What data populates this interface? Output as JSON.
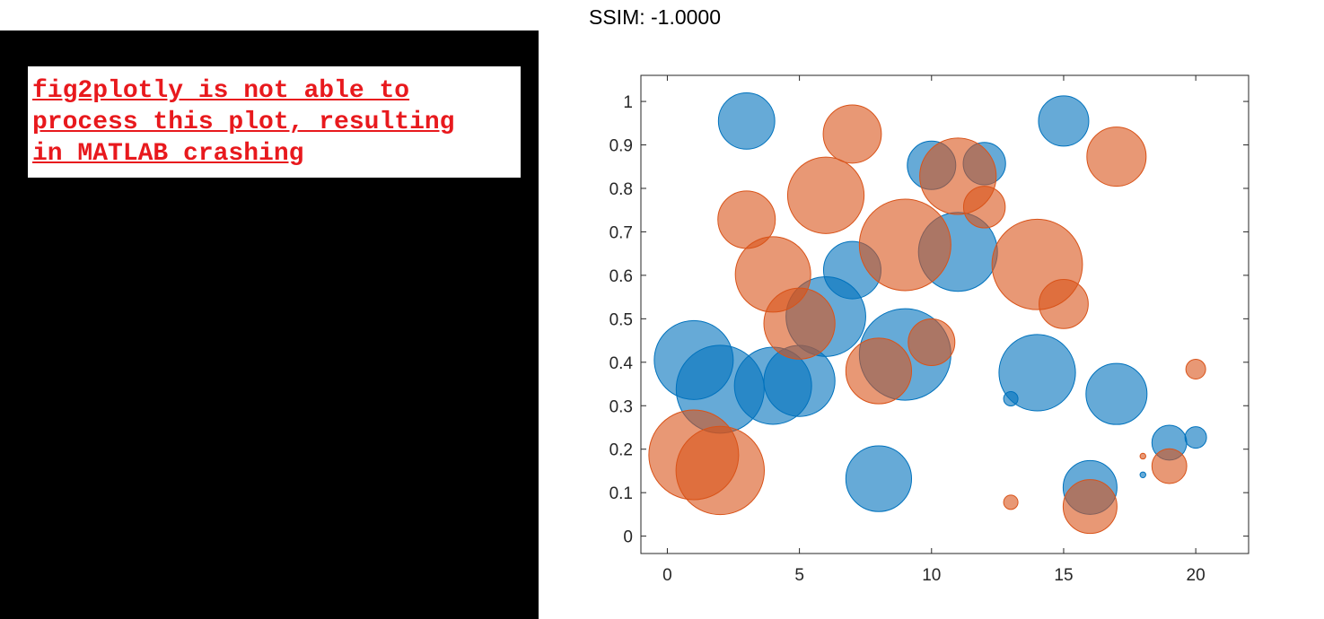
{
  "header": {
    "ssim_text": "SSIM: -1.0000"
  },
  "left_panel": {
    "message": "fig2plotly is not able to\nprocess this plot, resulting\nin MATLAB crashing"
  },
  "chart_data": {
    "type": "scatter",
    "subtype": "bubble",
    "title": "",
    "xlabel": "",
    "ylabel": "",
    "xlim": [
      -1,
      22
    ],
    "ylim": [
      -0.04,
      1.06
    ],
    "xticks": [
      0,
      5,
      10,
      15,
      20
    ],
    "yticks": [
      0,
      0.1,
      0.2,
      0.3,
      0.4,
      0.5,
      0.6,
      0.7,
      0.8,
      0.9,
      1
    ],
    "ytick_labels": [
      "0",
      "0.1",
      "0.2",
      "0.3",
      "0.4",
      "0.5",
      "0.6",
      "0.7",
      "0.8",
      "0.9",
      "1"
    ],
    "grid": false,
    "legend": "none",
    "series": [
      {
        "color": "#0072BD",
        "x": [
          1,
          2,
          3,
          4,
          5,
          6,
          7,
          8,
          9,
          10,
          11,
          12,
          13,
          14,
          15,
          16,
          17,
          18,
          19,
          20
        ],
        "y": [
          0.405,
          0.338,
          0.955,
          0.346,
          0.357,
          0.505,
          0.612,
          0.132,
          0.418,
          0.853,
          0.654,
          0.857,
          0.316,
          0.376,
          0.955,
          0.112,
          0.327,
          0.141,
          0.215,
          0.227
        ],
        "size": [
          2.2,
          2.45,
          1.57,
          2.15,
          1.98,
          2.22,
          1.6,
          1.83,
          2.55,
          1.35,
          2.2,
          1.18,
          0.4,
          2.13,
          1.4,
          1.5,
          1.7,
          0.16,
          0.97,
          0.6
        ]
      },
      {
        "color": "#D95319",
        "x": [
          1,
          2,
          3,
          4,
          5,
          6,
          7,
          8,
          9,
          10,
          11,
          12,
          13,
          14,
          15,
          16,
          17,
          18,
          19,
          20
        ],
        "y": [
          0.187,
          0.151,
          0.728,
          0.602,
          0.489,
          0.784,
          0.925,
          0.38,
          0.67,
          0.446,
          0.828,
          0.757,
          0.078,
          0.625,
          0.534,
          0.068,
          0.873,
          0.184,
          0.161,
          0.384
        ],
        "size": [
          2.5,
          2.46,
          1.6,
          2.1,
          1.98,
          2.13,
          1.62,
          1.83,
          2.55,
          1.3,
          2.13,
          1.16,
          0.4,
          2.52,
          1.37,
          1.5,
          1.65,
          0.16,
          0.97,
          0.55
        ]
      }
    ]
  }
}
